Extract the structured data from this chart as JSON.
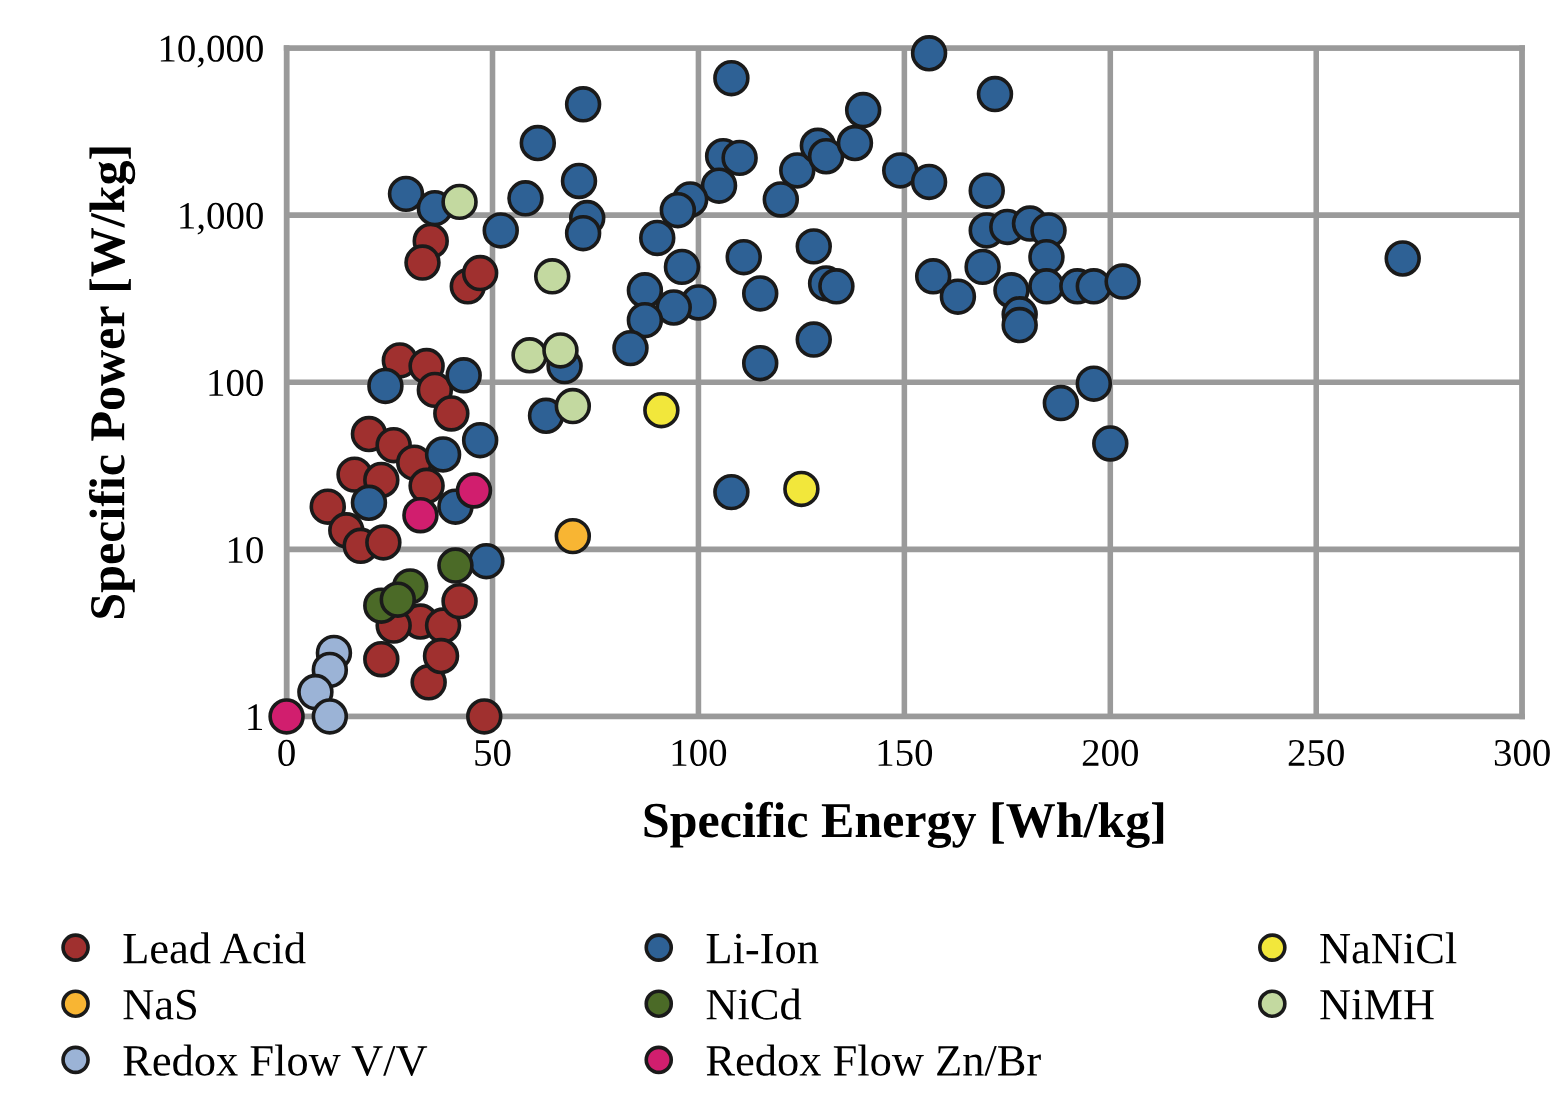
{
  "chart_data": {
    "type": "scatter",
    "xlabel": "Specific Energy [Wh/kg]",
    "ylabel": "Specific Power [W/kg]",
    "xlim": [
      0,
      300
    ],
    "xticks": [
      0,
      50,
      100,
      150,
      200,
      250,
      300
    ],
    "ylim": [
      1,
      10000
    ],
    "yticks": [
      1,
      10,
      100,
      {
        "value": 1000,
        "label": "1,000"
      },
      {
        "value": 10000,
        "label": "10,000"
      }
    ],
    "log": "y",
    "grid": true,
    "legend": "bottom",
    "marker": "circle",
    "series": [
      {
        "name": "Lead Acid",
        "color": "#a0302f",
        "x": [
          35,
          33,
          44,
          47,
          27.5,
          34,
          36,
          40,
          20,
          26,
          31,
          16.5,
          23,
          10,
          14.5,
          18,
          23.5,
          34,
          32.5,
          38,
          23,
          34.5,
          42,
          26,
          37.5,
          48
        ],
        "values": [
          700,
          520,
          375,
          450,
          135,
          125,
          90,
          65,
          49,
          42,
          33,
          28,
          26,
          18,
          13,
          10.5,
          11,
          24,
          3.7,
          3.5,
          2.2,
          1.6,
          4.9,
          3.5,
          2.3,
          1
        ]
      },
      {
        "name": "Li-Ion",
        "color": "#2e6195",
        "x": [
          156,
          108,
          72,
          61,
          71,
          58,
          73,
          72,
          106,
          110,
          105,
          98,
          95,
          90,
          96,
          87,
          100,
          94,
          87,
          83.5,
          111,
          115,
          115,
          120,
          124,
          129,
          131,
          138,
          140,
          128,
          131,
          133.5,
          128,
          149,
          63,
          67.5,
          172,
          156,
          170,
          170,
          175,
          180.5,
          185,
          184.5,
          169,
          157,
          163,
          176,
          178,
          178,
          184.5,
          192,
          196,
          203,
          271,
          196,
          188,
          200,
          108,
          29,
          36,
          52,
          24,
          43,
          47,
          38,
          20,
          41,
          48.5
        ],
        "values": [
          9300,
          6600,
          4600,
          2700,
          1600,
          1260,
          960,
          780,
          2250,
          2200,
          1500,
          1240,
          1070,
          730,
          490,
          355,
          300,
          280,
          235,
          160,
          560,
          340,
          130,
          1240,
          1850,
          2600,
          2250,
          2700,
          4250,
          650,
          390,
          375,
          180,
          1850,
          63,
          125,
          5300,
          1580,
          1400,
          810,
          850,
          890,
          810,
          560,
          490,
          430,
          325,
          355,
          255,
          220,
          375,
          375,
          375,
          400,
          550,
          98,
          75,
          43,
          22,
          1340,
          1100,
          810,
          95,
          110,
          45,
          37,
          19,
          18,
          8.5
        ]
      },
      {
        "name": "NaNiCl",
        "color": "#f2e73b",
        "x": [
          91,
          125
        ],
        "values": [
          68,
          23
        ]
      },
      {
        "name": "NaS",
        "color": "#f8b533",
        "x": [
          69.5
        ],
        "values": [
          12
        ]
      },
      {
        "name": "NiCd",
        "color": "#4b6a27",
        "x": [
          41,
          30,
          23,
          27
        ],
        "values": [
          8,
          6,
          4.6,
          5
        ]
      },
      {
        "name": "NiMH",
        "color": "#c3d9a0",
        "x": [
          42,
          64.5,
          59,
          66.5,
          69.5
        ],
        "values": [
          1200,
          430,
          145,
          155,
          72
        ]
      },
      {
        "name": "Redox Flow V/V",
        "color": "#9bb3d6",
        "x": [
          11.5,
          10.5,
          7,
          10.5
        ],
        "values": [
          2.4,
          1.9,
          1.4,
          1
        ]
      },
      {
        "name": "Redox Flow Zn/Br",
        "color": "#d11e6e",
        "x": [
          0,
          32.5,
          45.5
        ],
        "values": [
          1,
          16,
          22.5
        ]
      }
    ]
  }
}
